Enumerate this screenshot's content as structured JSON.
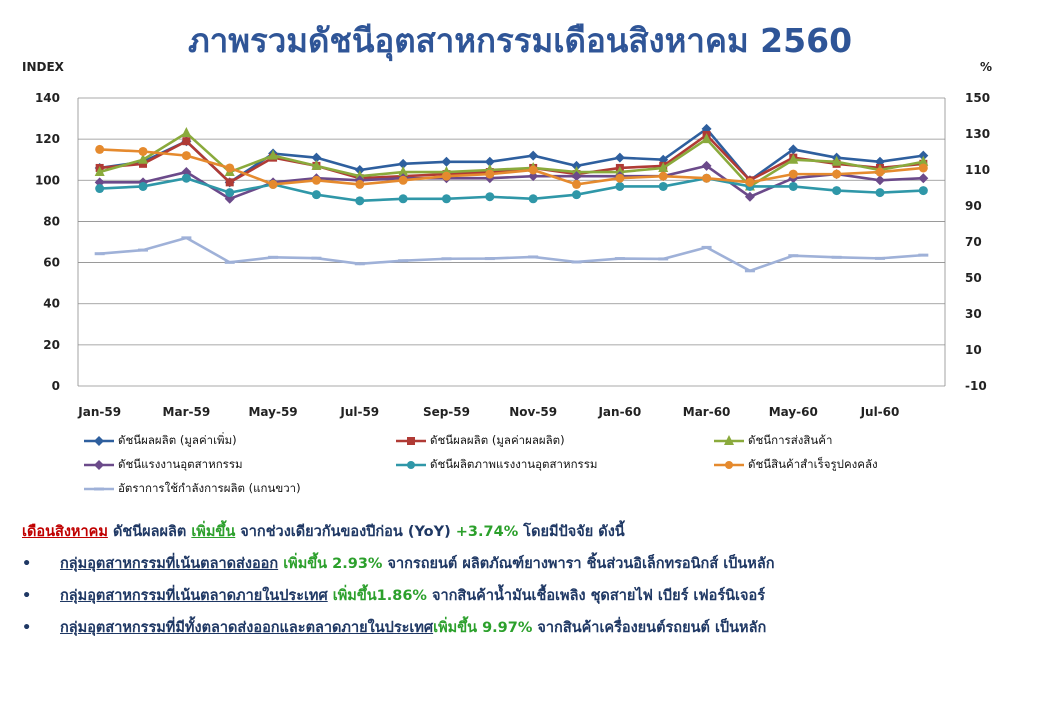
{
  "title": "ภาพรวมดัชนีอุตสาหกรรมเดือนสิงหาคม 2560",
  "chart_data": {
    "type": "line",
    "left_axis_label": "INDEX",
    "right_axis_label": "%",
    "left_ylim": [
      0,
      140
    ],
    "left_ticks": [
      0,
      20,
      40,
      60,
      80,
      100,
      120,
      140
    ],
    "right_ylim": [
      -10,
      150
    ],
    "right_ticks": [
      -10,
      10,
      30,
      50,
      70,
      90,
      110,
      130,
      150
    ],
    "x_labels": [
      "Jan-59",
      "Feb-59",
      "Mar-59",
      "Apr-59",
      "May-59",
      "Jun-59",
      "Jul-59",
      "Aug-59",
      "Sep-59",
      "Oct-59",
      "Nov-59",
      "Dec-59",
      "Jan-60",
      "Feb-60",
      "Mar-60",
      "Apr-60",
      "May-60",
      "Jun-60",
      "Jul-60",
      "Aug-60"
    ],
    "x_tick_labels": [
      "Jan-59",
      "Mar-59",
      "May-59",
      "Jul-59",
      "Sep-59",
      "Nov-59",
      "Jan-60",
      "Mar-60",
      "May-60",
      "Jul-60"
    ],
    "grid": "horizontal",
    "legend_position": "bottom",
    "series": [
      {
        "name": "ดัชนีผลผลิต (มูลค่าเพิ่ม)",
        "color": "#2e5f9e",
        "marker": "diamond",
        "axis": "left",
        "values": [
          106,
          109,
          119,
          99,
          113,
          111,
          105,
          108,
          109,
          109,
          112,
          107,
          111,
          110,
          125,
          100,
          115,
          111,
          109,
          112
        ]
      },
      {
        "name": "ดัชนีผลผลิต (มูลค่าผลผลิต)",
        "color": "#b03a35",
        "marker": "square",
        "axis": "left",
        "values": [
          106,
          108,
          119,
          99,
          111,
          107,
          101,
          102,
          103,
          104,
          106,
          103,
          106,
          107,
          122,
          100,
          111,
          108,
          106,
          108
        ]
      },
      {
        "name": "ดัชนีการส่งสินค้า",
        "color": "#8aaa3c",
        "marker": "triangle",
        "axis": "left",
        "values": [
          104,
          110,
          123,
          104,
          112,
          107,
          102,
          104,
          104,
          105,
          106,
          104,
          104,
          106,
          120,
          97,
          110,
          109,
          105,
          109
        ]
      },
      {
        "name": "ดัชนีแรงงานอุตสาหกรรม",
        "color": "#6b4a8a",
        "marker": "diamond",
        "axis": "left",
        "values": [
          99,
          99,
          104,
          91,
          99,
          101,
          100,
          101,
          101,
          101,
          102,
          102,
          102,
          102,
          107,
          92,
          101,
          103,
          100,
          101
        ]
      },
      {
        "name": "ดัชนีผลิตภาพแรงงานอุตสาหกรรม",
        "color": "#2f97a8",
        "marker": "circle",
        "axis": "left",
        "values": [
          96,
          97,
          101,
          94,
          98,
          93,
          90,
          91,
          91,
          92,
          91,
          93,
          97,
          97,
          101,
          97,
          97,
          95,
          94,
          95
        ]
      },
      {
        "name": "ดัชนีสินค้าสำเร็จรูปคงคลัง",
        "color": "#e58a2e",
        "marker": "circle",
        "axis": "left",
        "values": [
          115,
          114,
          112,
          106,
          98,
          100,
          98,
          100,
          102,
          103,
          105,
          98,
          101,
          102,
          101,
          99,
          103,
          103,
          104,
          106
        ]
      },
      {
        "name": "อัตราการใช้กำลังการผลิต (แกนขวา)",
        "color": "#9fb1d8",
        "marker": "dash",
        "axis": "right",
        "values": [
          63.5,
          65.5,
          72.3,
          58.7,
          61.5,
          61,
          57.9,
          59.6,
          60.7,
          60.8,
          61.7,
          58.9,
          60.8,
          60.6,
          67,
          54,
          62.4,
          61.5,
          60.9,
          62.7
        ]
      }
    ]
  },
  "notes": {
    "line1": {
      "prefix": "เดือนสิงหาคม",
      "text1": " ดัชนีผลผลิต ",
      "highlight": "เพิ่มขึ้น",
      "text2": " จากช่วงเดียวกันของปีก่อน (YoY) ",
      "value": "+3.74%",
      "text3": " โดยมีปัจจัย ดังนี้"
    },
    "bullets": [
      {
        "bullet": "•",
        "group": "กลุ่มอุตสาหกรรมที่เน้นตลาดส่งออก",
        "change": " เพิ่มขึ้น 2.93%",
        "detail": " จากรถยนต์ ผลิตภัณฑ์ยางพารา ชิ้นส่วนอิเล็กทรอนิกส์ เป็นหลัก"
      },
      {
        "bullet": "•",
        "group": "กลุ่มอุตสาหกรรมที่เน้นตลาดภายในประเทศ",
        "change": " เพิ่มขึ้น1.86%",
        "detail": " จากสินค้าน้ำมันเชื้อเพลิง ชุดสายไฟ เบียร์ เฟอร์นิเจอร์"
      },
      {
        "bullet": "•",
        "group": "กลุ่มอุตสาหกรรมที่มีทั้งตลาดส่งออกและตลาดภายในประเทศ",
        "change": "เพิ่มขึ้น 9.97%",
        "detail": " จากสินค้าเครื่องยนต์รถยนต์ เป็นหลัก"
      }
    ]
  }
}
